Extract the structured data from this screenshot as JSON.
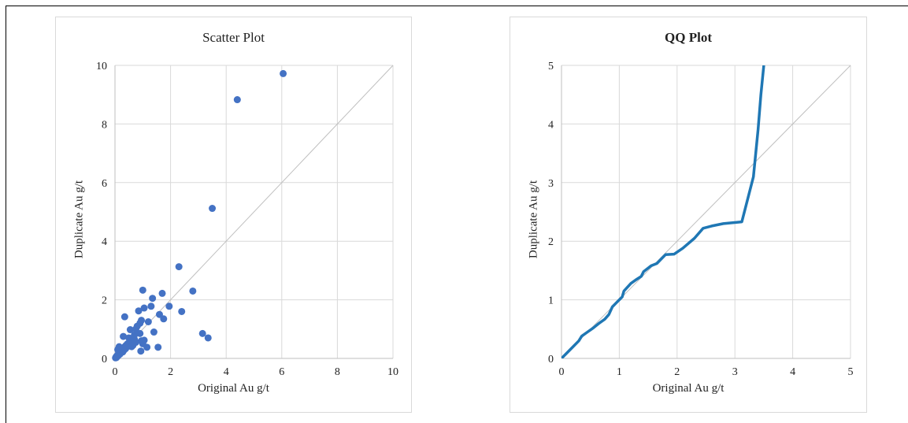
{
  "colors": {
    "grid": "#d9d9d9",
    "diagonal": "#bfbfbf",
    "axis": "#bfbfbf",
    "scatter_marker": "#4472c4",
    "qq_line": "#1f77b4"
  },
  "chart_data": [
    {
      "type": "scatter",
      "title": "Scatter Plot",
      "xlabel": "Original Au g/t",
      "ylabel": "Duplicate Au g/t",
      "xlim": [
        0,
        10
      ],
      "ylim": [
        0,
        10
      ],
      "xticks": [
        0,
        2,
        4,
        6,
        8,
        10
      ],
      "yticks": [
        0,
        2,
        4,
        6,
        8,
        10
      ],
      "grid": true,
      "reference_line": "y = x",
      "series": [
        {
          "points": [
            [
              0.02,
              0.02
            ],
            [
              0.04,
              0.05
            ],
            [
              0.05,
              0.03
            ],
            [
              0.06,
              0.08
            ],
            [
              0.08,
              0.06
            ],
            [
              0.1,
              0.12
            ],
            [
              0.12,
              0.1
            ],
            [
              0.15,
              0.18
            ],
            [
              0.18,
              0.15
            ],
            [
              0.2,
              0.25
            ],
            [
              0.22,
              0.2
            ],
            [
              0.25,
              0.3
            ],
            [
              0.28,
              0.22
            ],
            [
              0.3,
              0.35
            ],
            [
              0.32,
              0.28
            ],
            [
              0.35,
              0.4
            ],
            [
              0.38,
              0.33
            ],
            [
              0.4,
              0.45
            ],
            [
              0.45,
              0.5
            ],
            [
              0.5,
              0.42
            ],
            [
              0.55,
              0.6
            ],
            [
              0.6,
              0.55
            ],
            [
              0.65,
              0.7
            ],
            [
              0.7,
              0.65
            ],
            [
              0.1,
              0.3
            ],
            [
              0.15,
              0.4
            ],
            [
              0.3,
              0.75
            ],
            [
              0.35,
              1.42
            ],
            [
              0.5,
              0.7
            ],
            [
              0.55,
              0.98
            ],
            [
              0.6,
              0.4
            ],
            [
              0.7,
              0.8
            ],
            [
              0.75,
              1.0
            ],
            [
              0.8,
              1.1
            ],
            [
              0.85,
              1.62
            ],
            [
              0.9,
              1.2
            ],
            [
              0.95,
              1.3
            ],
            [
              1.0,
              2.33
            ],
            [
              0.9,
              0.85
            ],
            [
              0.95,
              0.6
            ],
            [
              1.0,
              0.5
            ],
            [
              1.05,
              1.72
            ],
            [
              1.05,
              0.62
            ],
            [
              1.15,
              0.38
            ],
            [
              1.2,
              1.25
            ],
            [
              1.3,
              1.78
            ],
            [
              1.35,
              2.05
            ],
            [
              1.4,
              0.9
            ],
            [
              1.55,
              0.38
            ],
            [
              1.6,
              1.5
            ],
            [
              1.7,
              2.22
            ],
            [
              1.75,
              1.35
            ],
            [
              1.95,
              1.78
            ],
            [
              0.93,
              0.25
            ],
            [
              0.75,
              0.55
            ],
            [
              0.65,
              0.45
            ],
            [
              2.3,
              3.13
            ],
            [
              2.4,
              1.6
            ],
            [
              2.8,
              2.3
            ],
            [
              3.15,
              0.85
            ],
            [
              3.35,
              0.7
            ],
            [
              3.5,
              5.12
            ],
            [
              4.4,
              8.83
            ],
            [
              6.05,
              9.72
            ]
          ]
        }
      ]
    },
    {
      "type": "line",
      "title": "QQ Plot",
      "xlabel": "Original Au g/t",
      "ylabel": "Duplicate Au g/t",
      "xlim": [
        0,
        5
      ],
      "ylim": [
        0,
        5
      ],
      "xticks": [
        0,
        1,
        2,
        3,
        4,
        5
      ],
      "yticks": [
        0,
        1,
        2,
        3,
        4,
        5
      ],
      "grid": true,
      "reference_line": "y = x",
      "series": [
        {
          "points": [
            [
              0.0,
              0.0
            ],
            [
              0.1,
              0.1
            ],
            [
              0.2,
              0.2
            ],
            [
              0.3,
              0.3
            ],
            [
              0.35,
              0.38
            ],
            [
              0.45,
              0.45
            ],
            [
              0.55,
              0.52
            ],
            [
              0.65,
              0.6
            ],
            [
              0.75,
              0.67
            ],
            [
              0.82,
              0.75
            ],
            [
              0.88,
              0.88
            ],
            [
              0.95,
              0.95
            ],
            [
              1.05,
              1.05
            ],
            [
              1.08,
              1.15
            ],
            [
              1.2,
              1.28
            ],
            [
              1.3,
              1.35
            ],
            [
              1.38,
              1.4
            ],
            [
              1.42,
              1.48
            ],
            [
              1.55,
              1.58
            ],
            [
              1.65,
              1.62
            ],
            [
              1.75,
              1.72
            ],
            [
              1.8,
              1.77
            ],
            [
              1.95,
              1.78
            ],
            [
              2.1,
              1.88
            ],
            [
              2.3,
              2.05
            ],
            [
              2.45,
              2.22
            ],
            [
              2.6,
              2.26
            ],
            [
              2.8,
              2.3
            ],
            [
              3.12,
              2.33
            ],
            [
              3.32,
              3.1
            ],
            [
              3.4,
              3.9
            ],
            [
              3.45,
              4.5
            ],
            [
              3.5,
              5.0
            ]
          ]
        }
      ]
    }
  ]
}
